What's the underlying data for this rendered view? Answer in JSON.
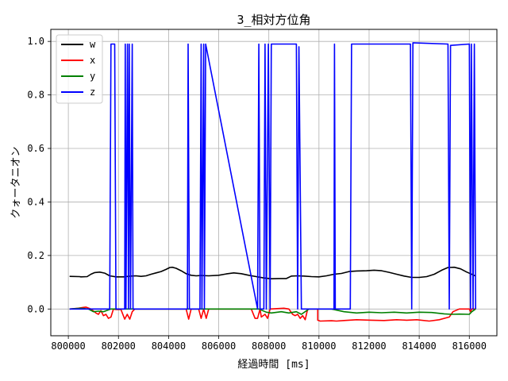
{
  "chart_data": {
    "type": "line",
    "title": "3_相対方位角",
    "xlabel": "経過時間 [ms]",
    "ylabel": "クォータニオン",
    "xlim": [
      799300,
      817100
    ],
    "ylim": [
      -0.1,
      1.045
    ],
    "x_ticks": [
      800000,
      802000,
      804000,
      806000,
      808000,
      810000,
      812000,
      814000,
      816000
    ],
    "x_tick_labels": [
      "800000",
      "802000",
      "804000",
      "806000",
      "808000",
      "810000",
      "812000",
      "814000",
      "816000"
    ],
    "y_ticks": [
      0.0,
      0.2,
      0.4,
      0.6,
      0.8,
      1.0
    ],
    "y_tick_labels": [
      "0.0",
      "0.2",
      "0.4",
      "0.6",
      "0.8",
      "1.0"
    ],
    "grid": true,
    "legend_position": "top-left",
    "series": [
      {
        "name": "w",
        "color": "#000000",
        "x": [
          800050,
          800450,
          800500,
          800750,
          800900,
          801050,
          801250,
          801450,
          801650,
          801900,
          802200,
          802500,
          802700,
          802900,
          803100,
          803300,
          803500,
          803700,
          803900,
          804050,
          804150,
          804300,
          804500,
          804700,
          804900,
          805100,
          805300,
          805600,
          806000,
          806300,
          806600,
          806900,
          807200,
          807500,
          807800,
          808100,
          808400,
          808700,
          808900,
          809150,
          809400,
          809700,
          810000,
          810300,
          810600,
          810900,
          811200,
          811500,
          811900,
          812200,
          812500,
          812800,
          813100,
          813400,
          813700,
          814000,
          814300,
          814600,
          814900,
          815150,
          815400,
          815650,
          815900,
          816050,
          816250
        ],
        "y": [
          0.122,
          0.121,
          0.12,
          0.121,
          0.13,
          0.136,
          0.138,
          0.134,
          0.124,
          0.12,
          0.12,
          0.123,
          0.124,
          0.122,
          0.124,
          0.13,
          0.135,
          0.14,
          0.148,
          0.155,
          0.156,
          0.152,
          0.143,
          0.132,
          0.126,
          0.124,
          0.125,
          0.124,
          0.126,
          0.131,
          0.135,
          0.132,
          0.126,
          0.121,
          0.116,
          0.113,
          0.114,
          0.114,
          0.123,
          0.124,
          0.123,
          0.121,
          0.12,
          0.124,
          0.13,
          0.133,
          0.14,
          0.142,
          0.143,
          0.145,
          0.143,
          0.137,
          0.13,
          0.123,
          0.118,
          0.118,
          0.121,
          0.13,
          0.145,
          0.155,
          0.156,
          0.15,
          0.138,
          0.132,
          0.123
        ]
      },
      {
        "name": "x",
        "color": "#ff0000",
        "x": [
          800050,
          800400,
          800600,
          800700,
          800900,
          801100,
          801200,
          801300,
          801400,
          801500,
          801600,
          801700,
          801800,
          801900,
          802100,
          802250,
          802350,
          802450,
          802550,
          802650,
          804700,
          804800,
          804900,
          805200,
          805300,
          805400,
          805500,
          805600,
          807300,
          807450,
          807550,
          807650,
          807700,
          807850,
          807950,
          808050,
          808600,
          808800,
          808950,
          809050,
          809150,
          809250,
          809350,
          809450,
          809550,
          809950,
          809950,
          810050,
          810500,
          810700,
          811000,
          811500,
          812100,
          812600,
          813100,
          813500,
          813900,
          814400,
          814800,
          815200,
          815350,
          815600,
          816000,
          816050,
          816100,
          816200,
          816250
        ],
        "y": [
          0.0,
          0.003,
          0.006,
          0.007,
          0.0,
          -0.015,
          -0.02,
          -0.006,
          -0.025,
          -0.02,
          -0.035,
          -0.03,
          0.0,
          -0.002,
          -0.002,
          -0.038,
          -0.02,
          -0.038,
          -0.01,
          0.0,
          0.0,
          -0.038,
          0.0,
          0.0,
          -0.035,
          0.0,
          -0.035,
          0.0,
          0.0,
          -0.035,
          -0.035,
          0.0,
          -0.03,
          -0.02,
          -0.035,
          0.0,
          0.003,
          0.0,
          -0.02,
          -0.025,
          -0.02,
          -0.035,
          -0.025,
          -0.04,
          0.0,
          0.0,
          -0.042,
          -0.045,
          -0.044,
          -0.045,
          -0.043,
          -0.04,
          -0.042,
          -0.043,
          -0.04,
          -0.042,
          -0.04,
          -0.045,
          -0.04,
          -0.03,
          -0.01,
          0.0,
          0.0,
          -0.01,
          0.0,
          0.0,
          0.0
        ]
      },
      {
        "name": "y",
        "color": "#008000",
        "x": [
          800050,
          800500,
          800800,
          801000,
          801200,
          801400,
          801700,
          802200,
          802600,
          803000,
          804000,
          805000,
          806000,
          807000,
          807600,
          807900,
          808100,
          808500,
          808800,
          809100,
          809300,
          809600,
          810000,
          810500,
          811000,
          811500,
          812000,
          812500,
          813000,
          813500,
          814000,
          814500,
          815000,
          815300,
          815600,
          816000,
          816100,
          816250
        ],
        "y": [
          0.0,
          0.003,
          0.0,
          -0.01,
          -0.008,
          -0.01,
          0.0,
          0.0,
          0.0,
          0.0,
          0.0,
          0.0,
          0.0,
          0.0,
          0.0,
          -0.012,
          -0.015,
          -0.01,
          -0.015,
          -0.01,
          -0.02,
          0.0,
          0.0,
          0.0,
          -0.01,
          -0.015,
          -0.012,
          -0.014,
          -0.012,
          -0.015,
          -0.012,
          -0.013,
          -0.018,
          -0.02,
          -0.019,
          -0.02,
          -0.01,
          0.0
        ]
      },
      {
        "name": "z",
        "color": "#0000ff",
        "x": [
          800050,
          801650,
          801700,
          801850,
          801900,
          802250,
          802270,
          802300,
          802360,
          802400,
          802430,
          802480,
          802550,
          802580,
          804750,
          804780,
          804830,
          805250,
          805300,
          805330,
          805400,
          805430,
          805480,
          807550,
          807600,
          807650,
          807800,
          807850,
          807900,
          807980,
          808050,
          808100,
          809100,
          809150,
          809200,
          809300,
          810600,
          810620,
          810650,
          811250,
          811300,
          813650,
          813700,
          813750,
          815150,
          815200,
          815250,
          816000,
          816050,
          816080,
          816150,
          816200,
          816250
        ],
        "y": [
          0.0,
          0.0,
          0.99,
          0.99,
          0.0,
          0.0,
          0.99,
          0.0,
          0.99,
          0.0,
          0.99,
          0.0,
          0.99,
          0.0,
          0.0,
          0.99,
          0.0,
          0.0,
          0.99,
          0.0,
          0.99,
          0.0,
          0.99,
          0.0,
          0.99,
          0.0,
          0.0,
          0.99,
          0.0,
          0.99,
          0.0,
          0.99,
          0.99,
          0.0,
          0.98,
          0.0,
          0.0,
          0.99,
          0.0,
          0.0,
          0.99,
          0.99,
          0.0,
          0.995,
          0.99,
          0.0,
          0.985,
          0.99,
          0.0,
          0.99,
          0.0,
          0.99,
          0.0
        ]
      }
    ]
  }
}
